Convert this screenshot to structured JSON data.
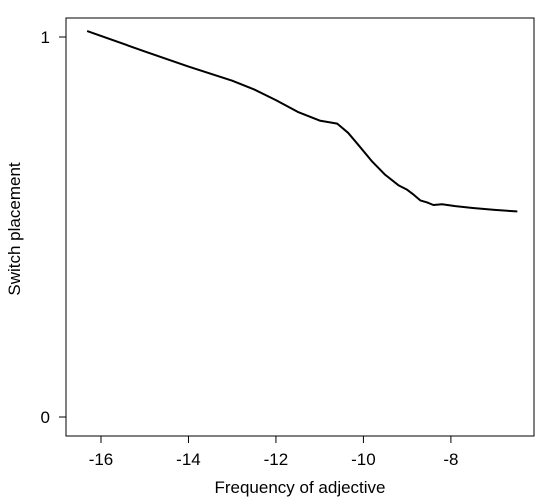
{
  "chart_data": {
    "type": "line",
    "xlabel": "Frequency of adjective",
    "ylabel": "Switch placement",
    "xlim": [
      -16.8,
      -6.1
    ],
    "ylim": [
      -0.05,
      1.05
    ],
    "x_ticks": [
      -16,
      -14,
      -12,
      -10,
      -8
    ],
    "x_tick_labels": [
      "-16",
      "-14",
      "-12",
      "-10",
      "-8"
    ],
    "y_ticks": [
      0,
      1
    ],
    "y_tick_labels": [
      "0",
      "1"
    ],
    "grid": false,
    "legend": false,
    "series": [
      {
        "color": "#000000",
        "x": [
          -16.3,
          -15.0,
          -14.0,
          -13.0,
          -12.5,
          -12.0,
          -11.5,
          -11.0,
          -10.6,
          -10.35,
          -10.1,
          -9.8,
          -9.5,
          -9.2,
          -9.0,
          -8.85,
          -8.7,
          -8.55,
          -8.4,
          -8.2,
          -7.9,
          -7.5,
          -7.0,
          -6.5
        ],
        "y": [
          1.015,
          0.962,
          0.922,
          0.885,
          0.862,
          0.834,
          0.803,
          0.78,
          0.772,
          0.748,
          0.714,
          0.672,
          0.637,
          0.61,
          0.598,
          0.585,
          0.57,
          0.565,
          0.558,
          0.56,
          0.555,
          0.55,
          0.545,
          0.541
        ]
      }
    ]
  }
}
